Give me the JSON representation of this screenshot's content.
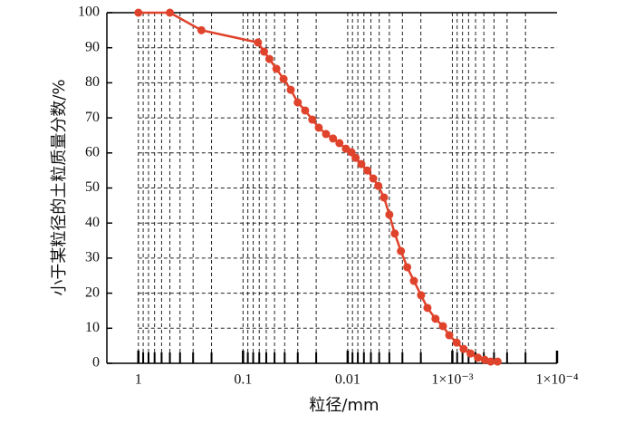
{
  "chart_data": {
    "type": "line",
    "x_scale": "log",
    "grid": true,
    "xlabel": "粒径/mm",
    "ylabel": "小于某粒径的土粒质量分数/%",
    "xlim": [
      2,
      0.0001
    ],
    "ylim": [
      0,
      100
    ],
    "xticks": [
      1,
      0.1,
      0.01,
      {
        "value": 0.001,
        "label": "1×10⁻³"
      },
      {
        "value": 0.0001,
        "label": "1×10⁻⁴"
      }
    ],
    "xminorticks": [
      0.9,
      0.8,
      0.7,
      0.6,
      0.5,
      0.4,
      0.3,
      0.2,
      0.09,
      0.08,
      0.07,
      0.06,
      0.05,
      0.04,
      0.03,
      0.02,
      0.009,
      0.008,
      0.007,
      0.006,
      0.005,
      0.004,
      0.003,
      0.002,
      0.0009,
      0.0008,
      0.0007,
      0.0006,
      0.0005,
      0.0004,
      0.0003,
      0.0002
    ],
    "yticks": [
      0,
      10,
      20,
      30,
      40,
      50,
      60,
      70,
      80,
      90,
      100
    ],
    "series": [
      {
        "color": "#e0432b",
        "x": [
          1,
          0.5,
          0.25,
          0.072,
          0.063,
          0.056,
          0.048,
          0.041,
          0.035,
          0.03,
          0.0255,
          0.0218,
          0.0189,
          0.0161,
          0.0138,
          0.012,
          0.0104,
          0.0092,
          0.0084,
          0.0074,
          0.0065,
          0.0057,
          0.0051,
          0.0045,
          0.004,
          0.00355,
          0.0031,
          0.0027,
          0.00233,
          0.00199,
          0.00173,
          0.00145,
          0.00123,
          0.00107,
          0.00091,
          0.00078,
          0.00067,
          0.00057,
          0.00049,
          0.00043,
          0.00037
        ],
        "values": [
          100,
          100,
          95,
          91.5,
          88.9,
          86.8,
          84,
          81.1,
          78,
          74.4,
          72.1,
          69.5,
          67.2,
          65.4,
          64.1,
          62.8,
          61.2,
          60.2,
          58.6,
          56.8,
          55,
          52.7,
          50.6,
          47.3,
          42.4,
          37,
          32,
          27.4,
          23.5,
          19.4,
          15.8,
          12.7,
          10.6,
          8,
          5.9,
          4.1,
          2.8,
          1.6,
          1,
          0.5,
          0.5
        ]
      }
    ]
  }
}
